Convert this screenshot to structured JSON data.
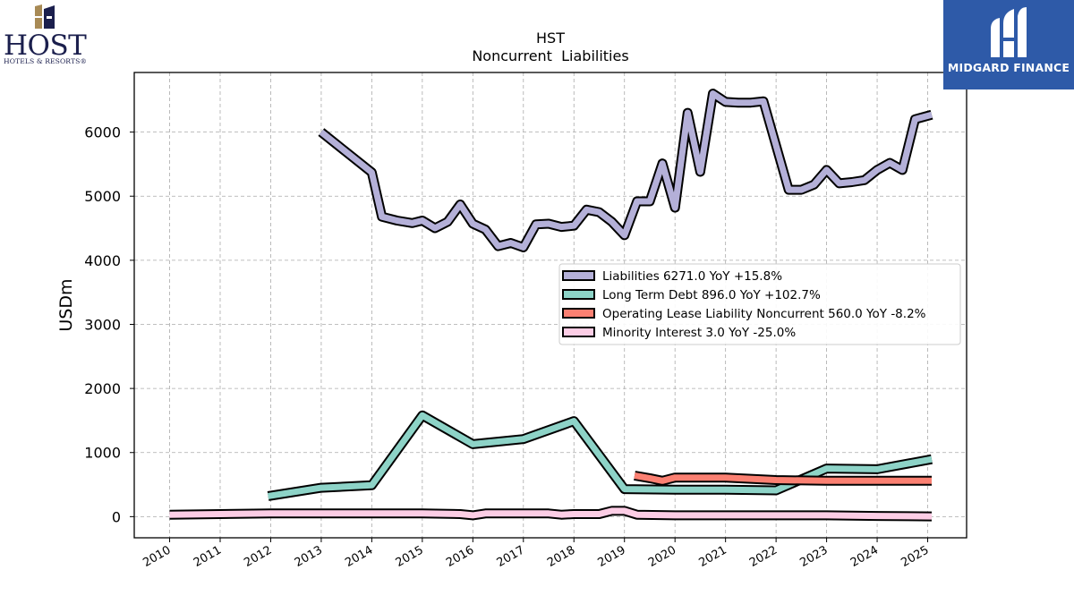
{
  "branding": {
    "company_logo_text": "HOST",
    "company_logo_subtext": "HOTELS & RESORTS®",
    "watermark_text": "MIDGARD FINANCE",
    "colors": {
      "host_navy": "#1b1f4d",
      "host_gold": "#a88a55",
      "midgard_blue": "#2e5aa8"
    }
  },
  "chart_data": {
    "type": "line",
    "title": "HST",
    "subtitle": "Noncurrent  Liabilities",
    "xlabel": "",
    "ylabel": "USDm",
    "xlim": [
      2009.3,
      2025.77
    ],
    "ylim": [
      -330,
      6930
    ],
    "x_ticks": [
      2010,
      2011,
      2012,
      2013,
      2014,
      2015,
      2016,
      2017,
      2018,
      2019,
      2020,
      2021,
      2022,
      2023,
      2024,
      2025
    ],
    "x_tick_labels": [
      "2010",
      "2011",
      "2012",
      "2013",
      "2014",
      "2015",
      "2016",
      "2017",
      "2018",
      "2019",
      "2020",
      "2021",
      "2022",
      "2023",
      "2024",
      "2025"
    ],
    "y_ticks": [
      0,
      1000,
      2000,
      3000,
      4000,
      5000,
      6000
    ],
    "y_tick_labels": [
      "0",
      "1000",
      "2000",
      "3000",
      "4000",
      "5000",
      "6000"
    ],
    "grid": true,
    "legend_position": "center-right",
    "series": [
      {
        "name": "Liabilities",
        "legend_label": "Liabilities  6271.0 YoY +15.8%",
        "color": "#b4b0d8",
        "points": [
          [
            2013.0,
            6000
          ],
          [
            2014.0,
            5370
          ],
          [
            2014.2,
            4680
          ],
          [
            2014.5,
            4620
          ],
          [
            2014.8,
            4580
          ],
          [
            2015.0,
            4620
          ],
          [
            2015.25,
            4500
          ],
          [
            2015.5,
            4600
          ],
          [
            2015.75,
            4870
          ],
          [
            2016.0,
            4570
          ],
          [
            2016.25,
            4480
          ],
          [
            2016.5,
            4220
          ],
          [
            2016.75,
            4270
          ],
          [
            2017.0,
            4200
          ],
          [
            2017.25,
            4560
          ],
          [
            2017.5,
            4570
          ],
          [
            2017.75,
            4520
          ],
          [
            2018.0,
            4540
          ],
          [
            2018.25,
            4790
          ],
          [
            2018.5,
            4750
          ],
          [
            2018.75,
            4600
          ],
          [
            2019.0,
            4390
          ],
          [
            2019.25,
            4920
          ],
          [
            2019.5,
            4920
          ],
          [
            2019.75,
            5510
          ],
          [
            2020.0,
            4820
          ],
          [
            2020.25,
            6300
          ],
          [
            2020.5,
            5380
          ],
          [
            2020.75,
            6600
          ],
          [
            2021.0,
            6470
          ],
          [
            2021.25,
            6460
          ],
          [
            2021.5,
            6460
          ],
          [
            2021.75,
            6480
          ],
          [
            2022.25,
            5100
          ],
          [
            2022.5,
            5100
          ],
          [
            2022.75,
            5180
          ],
          [
            2023.0,
            5410
          ],
          [
            2023.25,
            5200
          ],
          [
            2023.5,
            5220
          ],
          [
            2023.75,
            5250
          ],
          [
            2024.0,
            5410
          ],
          [
            2024.25,
            5520
          ],
          [
            2024.5,
            5410
          ],
          [
            2024.75,
            6200
          ],
          [
            2025.08,
            6271
          ]
        ]
      },
      {
        "name": "Long Term Debt",
        "legend_label": "Long Term Debt  896.0 YoY +102.7%",
        "color": "#8dd3c7",
        "points": [
          [
            2011.95,
            320
          ],
          [
            2013.0,
            450
          ],
          [
            2014.0,
            490
          ],
          [
            2015.0,
            1580
          ],
          [
            2016.0,
            1130
          ],
          [
            2017.0,
            1210
          ],
          [
            2018.0,
            1490
          ],
          [
            2019.0,
            430
          ],
          [
            2020.0,
            420
          ],
          [
            2021.0,
            420
          ],
          [
            2022.0,
            410
          ],
          [
            2023.0,
            750
          ],
          [
            2024.0,
            740
          ],
          [
            2025.08,
            896
          ]
        ]
      },
      {
        "name": "Operating Lease Liability Noncurrent",
        "legend_label": "Operating Lease Liability Noncurrent  560.0 YoY -8.2%",
        "color": "#fb8072",
        "points": [
          [
            2019.2,
            640
          ],
          [
            2019.5,
            600
          ],
          [
            2019.75,
            560
          ],
          [
            2020.0,
            610
          ],
          [
            2021.0,
            610
          ],
          [
            2022.0,
            570
          ],
          [
            2023.0,
            560
          ],
          [
            2024.0,
            560
          ],
          [
            2025.08,
            560
          ]
        ]
      },
      {
        "name": "Minority Interest",
        "legend_label": "Minority Interest  3.0 YoY -25.0%",
        "color": "#fccde5",
        "points": [
          [
            2010.0,
            30
          ],
          [
            2011.0,
            40
          ],
          [
            2012.0,
            50
          ],
          [
            2013.0,
            50
          ],
          [
            2014.0,
            50
          ],
          [
            2015.0,
            50
          ],
          [
            2015.75,
            40
          ],
          [
            2016.0,
            20
          ],
          [
            2016.25,
            50
          ],
          [
            2017.0,
            50
          ],
          [
            2017.5,
            50
          ],
          [
            2017.75,
            30
          ],
          [
            2018.0,
            40
          ],
          [
            2018.5,
            40
          ],
          [
            2018.75,
            90
          ],
          [
            2019.0,
            90
          ],
          [
            2019.25,
            30
          ],
          [
            2020.0,
            20
          ],
          [
            2021.0,
            20
          ],
          [
            2022.0,
            20
          ],
          [
            2023.0,
            20
          ],
          [
            2024.0,
            10
          ],
          [
            2025.08,
            3
          ]
        ]
      }
    ]
  }
}
